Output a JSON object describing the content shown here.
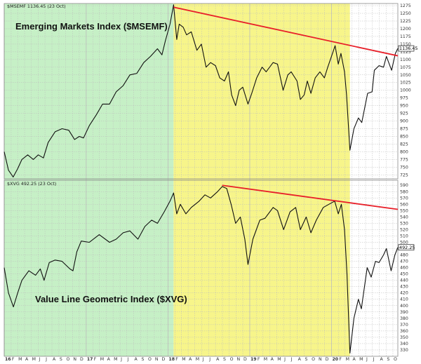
{
  "chart_data": [
    {
      "type": "line",
      "title": "Emerging Markets Index ($MSEMF)",
      "header": "$MSEMF 1136.45 (23 Oct)",
      "last_value_label": "1136.45",
      "yticks": [
        725,
        750,
        775,
        800,
        825,
        850,
        875,
        900,
        925,
        950,
        975,
        1000,
        1025,
        1050,
        1075,
        1100,
        1125,
        1150,
        1175,
        1200,
        1225,
        1250,
        1275
      ],
      "ylim": [
        712,
        1282
      ],
      "grid": true,
      "x_date_range": [
        "2016-01-01",
        "2020-10-23"
      ],
      "series": [
        {
          "values": [
            [
              "2016-01-01",
              800
            ],
            [
              "2016-01-20",
              740
            ],
            [
              "2016-02-10",
              718
            ],
            [
              "2016-03-01",
              745
            ],
            [
              "2016-03-20",
              775
            ],
            [
              "2016-04-15",
              790
            ],
            [
              "2016-05-10",
              775
            ],
            [
              "2016-06-01",
              790
            ],
            [
              "2016-06-24",
              780
            ],
            [
              "2016-07-15",
              830
            ],
            [
              "2016-08-15",
              865
            ],
            [
              "2016-09-15",
              875
            ],
            [
              "2016-10-15",
              870
            ],
            [
              "2016-11-10",
              840
            ],
            [
              "2016-12-01",
              850
            ],
            [
              "2016-12-20",
              845
            ],
            [
              "2017-01-15",
              885
            ],
            [
              "2017-02-15",
              920
            ],
            [
              "2017-03-15",
              955
            ],
            [
              "2017-04-15",
              955
            ],
            [
              "2017-05-15",
              995
            ],
            [
              "2017-06-15",
              1015
            ],
            [
              "2017-07-15",
              1050
            ],
            [
              "2017-08-15",
              1055
            ],
            [
              "2017-09-15",
              1090
            ],
            [
              "2017-10-15",
              1110
            ],
            [
              "2017-11-15",
              1135
            ],
            [
              "2017-12-05",
              1115
            ],
            [
              "2017-12-20",
              1160
            ],
            [
              "2018-01-10",
              1215
            ],
            [
              "2018-01-26",
              1278
            ],
            [
              "2018-02-09",
              1165
            ],
            [
              "2018-02-20",
              1215
            ],
            [
              "2018-03-10",
              1205
            ],
            [
              "2018-03-25",
              1180
            ],
            [
              "2018-04-15",
              1190
            ],
            [
              "2018-05-10",
              1130
            ],
            [
              "2018-05-30",
              1150
            ],
            [
              "2018-06-20",
              1075
            ],
            [
              "2018-07-10",
              1090
            ],
            [
              "2018-08-01",
              1080
            ],
            [
              "2018-08-20",
              1040
            ],
            [
              "2018-09-10",
              1030
            ],
            [
              "2018-09-28",
              1060
            ],
            [
              "2018-10-12",
              985
            ],
            [
              "2018-10-30",
              950
            ],
            [
              "2018-11-15",
              1000
            ],
            [
              "2018-12-01",
              1010
            ],
            [
              "2018-12-24",
              955
            ],
            [
              "2019-01-10",
              990
            ],
            [
              "2019-02-01",
              1040
            ],
            [
              "2019-02-25",
              1075
            ],
            [
              "2019-03-15",
              1060
            ],
            [
              "2019-04-15",
              1090
            ],
            [
              "2019-05-05",
              1085
            ],
            [
              "2019-05-30",
              1000
            ],
            [
              "2019-06-20",
              1050
            ],
            [
              "2019-07-05",
              1060
            ],
            [
              "2019-07-31",
              1030
            ],
            [
              "2019-08-15",
              970
            ],
            [
              "2019-09-01",
              985
            ],
            [
              "2019-09-15",
              1030
            ],
            [
              "2019-10-01",
              990
            ],
            [
              "2019-10-20",
              1040
            ],
            [
              "2019-11-10",
              1060
            ],
            [
              "2019-11-30",
              1040
            ],
            [
              "2019-12-15",
              1075
            ],
            [
              "2020-01-10",
              1130
            ],
            [
              "2020-01-17",
              1145
            ],
            [
              "2020-01-31",
              1085
            ],
            [
              "2020-02-12",
              1120
            ],
            [
              "2020-02-28",
              1060
            ],
            [
              "2020-03-08",
              985
            ],
            [
              "2020-03-23",
              805
            ],
            [
              "2020-04-10",
              875
            ],
            [
              "2020-04-30",
              910
            ],
            [
              "2020-05-15",
              895
            ],
            [
              "2020-06-10",
              990
            ],
            [
              "2020-06-30",
              995
            ],
            [
              "2020-07-10",
              1065
            ],
            [
              "2020-07-31",
              1080
            ],
            [
              "2020-08-20",
              1075
            ],
            [
              "2020-09-02",
              1110
            ],
            [
              "2020-09-25",
              1065
            ],
            [
              "2020-10-12",
              1120
            ],
            [
              "2020-10-23",
              1136
            ]
          ]
        }
      ],
      "trendline": [
        [
          "2018-01-26",
          1270
        ],
        [
          "2020-10-23",
          1112
        ]
      ]
    },
    {
      "type": "line",
      "title": "Value Line Geometric Index ($XVG)",
      "header": "$XVG 492.25 (23 Oct)",
      "last_value_label": "492.25",
      "yticks": [
        330,
        340,
        350,
        360,
        370,
        380,
        390,
        400,
        410,
        420,
        430,
        440,
        450,
        460,
        470,
        480,
        490,
        500,
        510,
        520,
        530,
        540,
        550,
        560,
        570,
        580,
        590
      ],
      "ylim": [
        320,
        598
      ],
      "grid": true,
      "x_date_range": [
        "2016-01-01",
        "2020-10-23"
      ],
      "series": [
        {
          "values": [
            [
              "2016-01-01",
              460
            ],
            [
              "2016-01-20",
              420
            ],
            [
              "2016-02-11",
              398
            ],
            [
              "2016-03-01",
              420
            ],
            [
              "2016-03-20",
              440
            ],
            [
              "2016-04-20",
              455
            ],
            [
              "2016-05-20",
              448
            ],
            [
              "2016-06-10",
              458
            ],
            [
              "2016-06-27",
              440
            ],
            [
              "2016-07-20",
              468
            ],
            [
              "2016-08-15",
              472
            ],
            [
              "2016-09-15",
              470
            ],
            [
              "2016-10-20",
              458
            ],
            [
              "2016-11-03",
              455
            ],
            [
              "2016-11-20",
              485
            ],
            [
              "2016-12-10",
              502
            ],
            [
              "2017-01-15",
              500
            ],
            [
              "2017-02-28",
              512
            ],
            [
              "2017-04-15",
              500
            ],
            [
              "2017-05-15",
              505
            ],
            [
              "2017-06-15",
              515
            ],
            [
              "2017-07-15",
              518
            ],
            [
              "2017-08-20",
              505
            ],
            [
              "2017-09-20",
              525
            ],
            [
              "2017-10-20",
              535
            ],
            [
              "2017-11-15",
              530
            ],
            [
              "2017-12-15",
              548
            ],
            [
              "2018-01-10",
              565
            ],
            [
              "2018-01-26",
              578
            ],
            [
              "2018-02-09",
              545
            ],
            [
              "2018-02-25",
              560
            ],
            [
              "2018-03-22",
              545
            ],
            [
              "2018-04-15",
              555
            ],
            [
              "2018-05-20",
              565
            ],
            [
              "2018-06-15",
              575
            ],
            [
              "2018-07-10",
              570
            ],
            [
              "2018-08-10",
              580
            ],
            [
              "2018-08-31",
              588
            ],
            [
              "2018-09-20",
              585
            ],
            [
              "2018-10-10",
              560
            ],
            [
              "2018-10-30",
              530
            ],
            [
              "2018-11-20",
              540
            ],
            [
              "2018-12-10",
              505
            ],
            [
              "2018-12-24",
              465
            ],
            [
              "2019-01-15",
              505
            ],
            [
              "2019-02-15",
              535
            ],
            [
              "2019-03-10",
              538
            ],
            [
              "2019-04-15",
              555
            ],
            [
              "2019-05-05",
              550
            ],
            [
              "2019-06-01",
              520
            ],
            [
              "2019-06-30",
              548
            ],
            [
              "2019-07-25",
              555
            ],
            [
              "2019-08-15",
              520
            ],
            [
              "2019-09-10",
              540
            ],
            [
              "2019-10-01",
              515
            ],
            [
              "2019-10-25",
              535
            ],
            [
              "2019-11-25",
              555
            ],
            [
              "2019-12-20",
              560
            ],
            [
              "2020-01-15",
              565
            ],
            [
              "2020-01-31",
              545
            ],
            [
              "2020-02-14",
              560
            ],
            [
              "2020-02-28",
              520
            ],
            [
              "2020-03-10",
              450
            ],
            [
              "2020-03-23",
              325
            ],
            [
              "2020-04-10",
              380
            ],
            [
              "2020-04-30",
              410
            ],
            [
              "2020-05-13",
              395
            ],
            [
              "2020-06-08",
              460
            ],
            [
              "2020-06-26",
              445
            ],
            [
              "2020-07-15",
              470
            ],
            [
              "2020-07-31",
              468
            ],
            [
              "2020-08-20",
              480
            ],
            [
              "2020-09-02",
              490
            ],
            [
              "2020-09-23",
              455
            ],
            [
              "2020-10-10",
              480
            ],
            [
              "2020-10-23",
              492
            ]
          ]
        }
      ],
      "trendline": [
        [
          "2018-08-31",
          590
        ],
        [
          "2020-10-23",
          552
        ]
      ]
    }
  ],
  "x_axis_ticks": [
    {
      "date": "2016-01-01",
      "label": "16",
      "year": true
    },
    {
      "date": "2016-02-01",
      "label": "F"
    },
    {
      "date": "2016-03-01",
      "label": "M"
    },
    {
      "date": "2016-04-01",
      "label": "A"
    },
    {
      "date": "2016-05-01",
      "label": "M"
    },
    {
      "date": "2016-06-01",
      "label": "J"
    },
    {
      "date": "2016-07-01",
      "label": "J"
    },
    {
      "date": "2016-08-01",
      "label": "A"
    },
    {
      "date": "2016-09-01",
      "label": "S"
    },
    {
      "date": "2016-10-01",
      "label": "O"
    },
    {
      "date": "2016-11-01",
      "label": "N"
    },
    {
      "date": "2016-12-01",
      "label": "D"
    },
    {
      "date": "2017-01-01",
      "label": "17",
      "year": true
    },
    {
      "date": "2017-02-01",
      "label": "F"
    },
    {
      "date": "2017-03-01",
      "label": "M"
    },
    {
      "date": "2017-04-01",
      "label": "A"
    },
    {
      "date": "2017-05-01",
      "label": "M"
    },
    {
      "date": "2017-06-01",
      "label": "J"
    },
    {
      "date": "2017-07-01",
      "label": "J"
    },
    {
      "date": "2017-08-01",
      "label": "A"
    },
    {
      "date": "2017-09-01",
      "label": "S"
    },
    {
      "date": "2017-10-01",
      "label": "O"
    },
    {
      "date": "2017-11-01",
      "label": "N"
    },
    {
      "date": "2017-12-01",
      "label": "D"
    },
    {
      "date": "2018-01-01",
      "label": "18",
      "year": true
    },
    {
      "date": "2018-02-01",
      "label": "F"
    },
    {
      "date": "2018-03-01",
      "label": "M"
    },
    {
      "date": "2018-04-01",
      "label": "A"
    },
    {
      "date": "2018-05-01",
      "label": "M"
    },
    {
      "date": "2018-06-01",
      "label": "J"
    },
    {
      "date": "2018-07-01",
      "label": "J"
    },
    {
      "date": "2018-08-01",
      "label": "A"
    },
    {
      "date": "2018-09-01",
      "label": "S"
    },
    {
      "date": "2018-10-01",
      "label": "O"
    },
    {
      "date": "2018-11-01",
      "label": "N"
    },
    {
      "date": "2018-12-01",
      "label": "D"
    },
    {
      "date": "2019-01-01",
      "label": "19",
      "year": true
    },
    {
      "date": "2019-02-01",
      "label": "F"
    },
    {
      "date": "2019-03-01",
      "label": "M"
    },
    {
      "date": "2019-04-01",
      "label": "A"
    },
    {
      "date": "2019-05-01",
      "label": "M"
    },
    {
      "date": "2019-06-01",
      "label": "J"
    },
    {
      "date": "2019-07-01",
      "label": "J"
    },
    {
      "date": "2019-08-01",
      "label": "A"
    },
    {
      "date": "2019-09-01",
      "label": "S"
    },
    {
      "date": "2019-10-01",
      "label": "O"
    },
    {
      "date": "2019-11-01",
      "label": "N"
    },
    {
      "date": "2019-12-01",
      "label": "D"
    },
    {
      "date": "2020-01-01",
      "label": "20",
      "year": true
    },
    {
      "date": "2020-02-01",
      "label": "F"
    },
    {
      "date": "2020-03-01",
      "label": "M"
    },
    {
      "date": "2020-04-01",
      "label": "A"
    },
    {
      "date": "2020-05-01",
      "label": "M"
    },
    {
      "date": "2020-06-01",
      "label": "J"
    },
    {
      "date": "2020-07-01",
      "label": "J"
    },
    {
      "date": "2020-08-01",
      "label": "A"
    },
    {
      "date": "2020-09-01",
      "label": "S"
    },
    {
      "date": "2020-10-01",
      "label": "O"
    }
  ],
  "highlight_regions": [
    {
      "from": "2016-01-01",
      "to": "2018-01-26",
      "color": "#c6f0c6"
    },
    {
      "from": "2018-01-26",
      "to": "2020-03-23",
      "color": "#f7f58a"
    }
  ],
  "colors": {
    "price_line": "#111111",
    "trendline": "#e8202a",
    "grid": "#bcbcbc",
    "panel_border": "#8a8a8a"
  }
}
